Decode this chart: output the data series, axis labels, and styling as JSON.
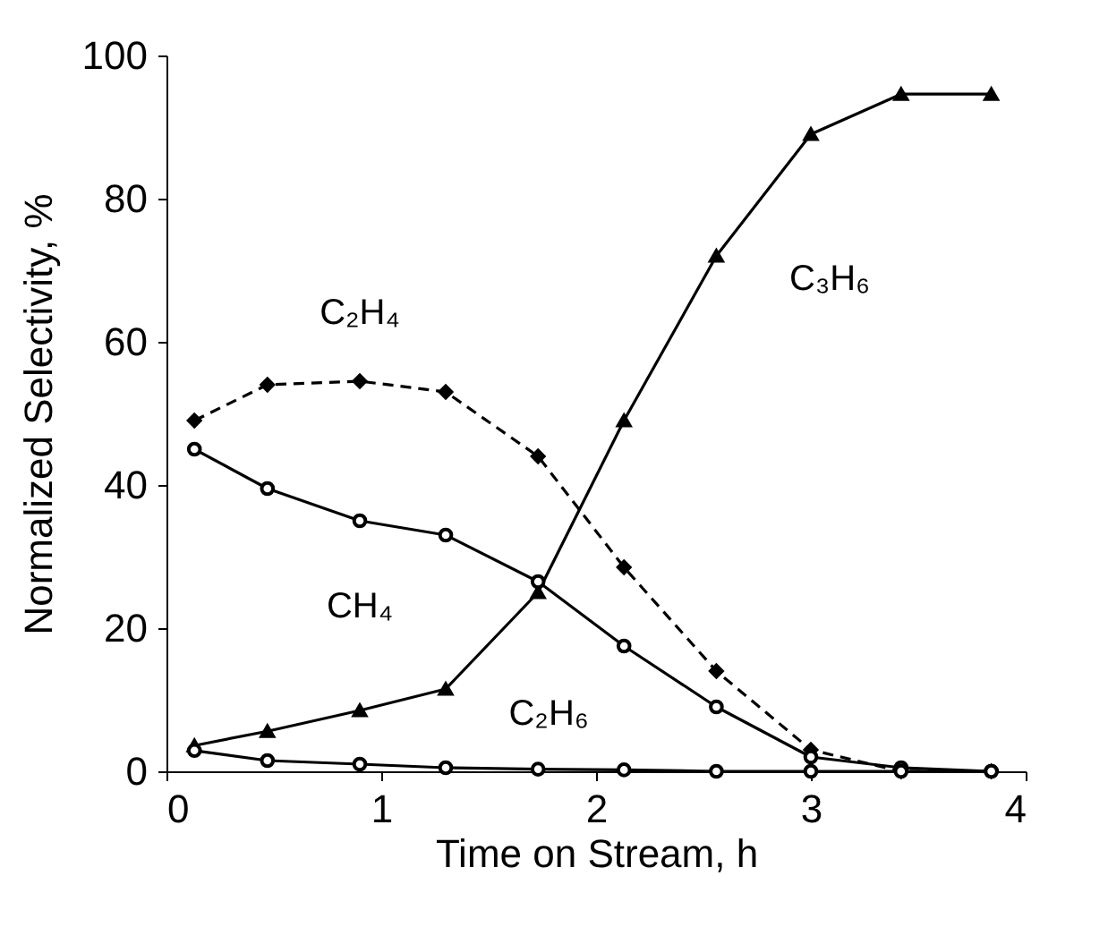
{
  "chart_data": {
    "type": "line",
    "xlabel": "Time on Stream, h",
    "ylabel": "Normalized Selectivity, %",
    "xlim": [
      0,
      4
    ],
    "xticks": [
      0,
      1,
      2,
      3,
      4
    ],
    "ylim": [
      0,
      100
    ],
    "yticks": [
      0,
      20,
      40,
      60,
      80,
      100
    ],
    "grid": false,
    "x": [
      0.13,
      0.47,
      0.9,
      1.3,
      1.73,
      2.13,
      2.56,
      3.0,
      3.42,
      3.84
    ],
    "series": [
      {
        "color": "#000000",
        "marker": "triangle",
        "line_style": "solid",
        "values": [
          3.6,
          5.6,
          8.5,
          11.5,
          25,
          49,
          72,
          89,
          94.6,
          94.6
        ]
      },
      {
        "color": "#000000",
        "marker": "diamond",
        "line_style": "dashed",
        "values": [
          49,
          54,
          54.5,
          53,
          44,
          28.5,
          14,
          3,
          0,
          0
        ]
      },
      {
        "color": "#000000",
        "marker": "circle",
        "line_style": "solid",
        "values": [
          45,
          39.5,
          35,
          33,
          26.5,
          17.5,
          9,
          2,
          0.5,
          0
        ]
      },
      {
        "color": "#000000",
        "marker": "circle",
        "line_style": "solid",
        "values": [
          2.9,
          1.5,
          1,
          0.5,
          0.3,
          0.2,
          0,
          0,
          0,
          0
        ]
      }
    ],
    "annotations": [
      {
        "text": "C₂H₄",
        "x": 0.9,
        "y": 54.5
      },
      {
        "text": "C₃H₆",
        "x": 2.5,
        "y": 68.8
      },
      {
        "text": "CH₄",
        "x": 0.9,
        "y": 35
      },
      {
        "text": "C₂H₆",
        "x": 1.78,
        "y": 0.5
      }
    ]
  }
}
